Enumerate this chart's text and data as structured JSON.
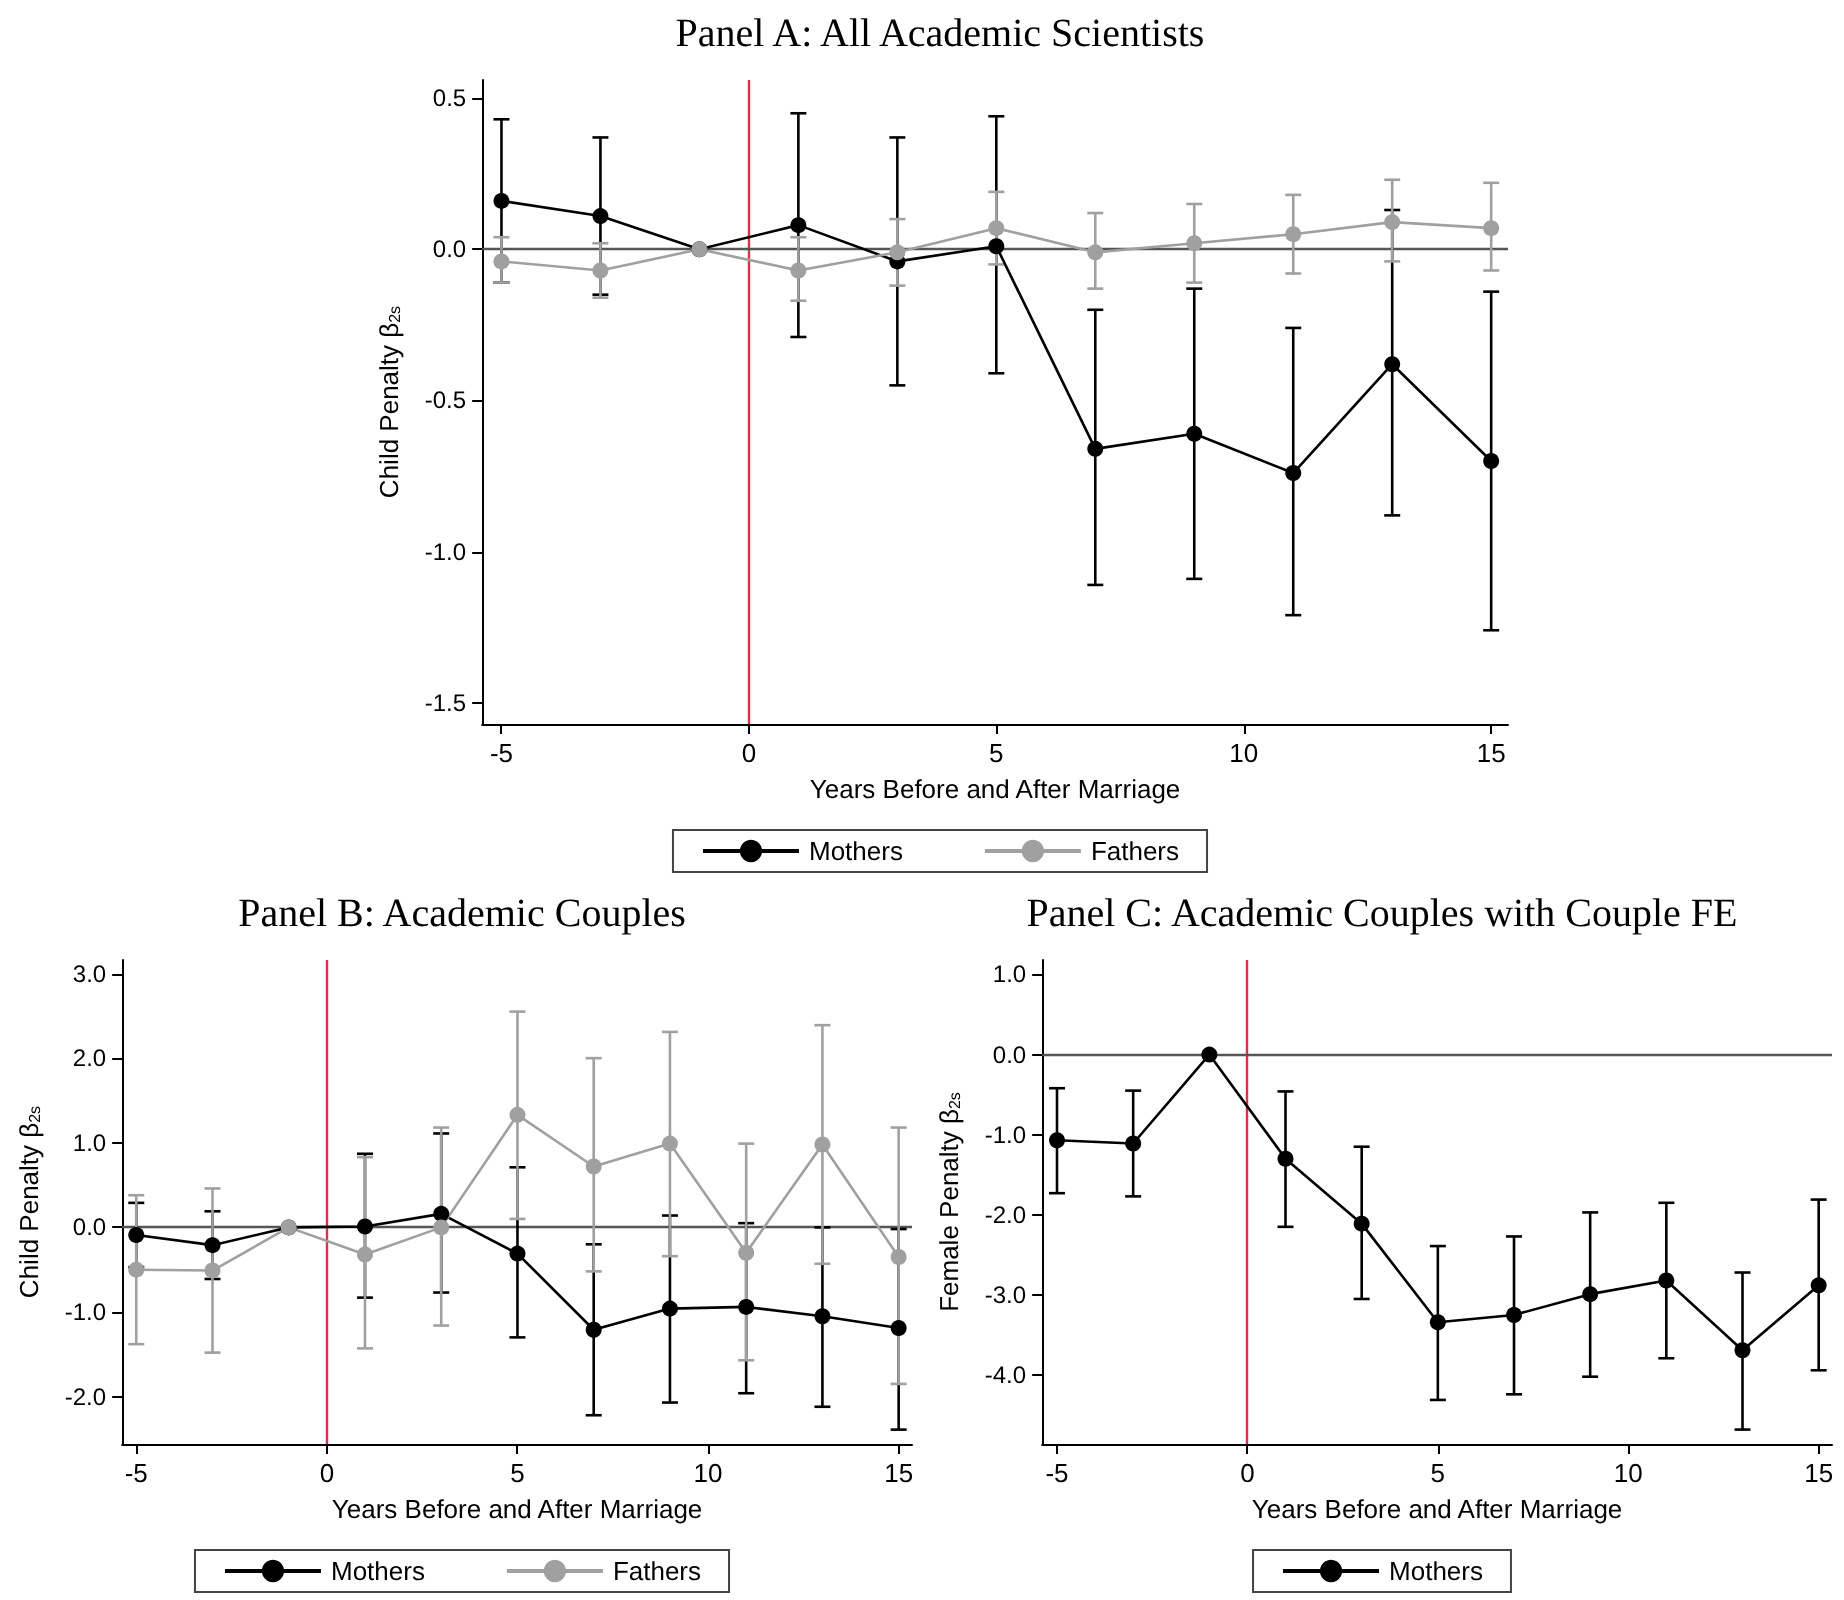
{
  "chart_data": [
    {
      "type": "line",
      "title": "Panel A: All Academic Scientists",
      "xlabel": "Years Before and After Marriage",
      "ylabel": "Child Penalty β$_{2s}$",
      "x": [
        -5,
        -3,
        -1,
        1,
        3,
        5,
        7,
        9,
        11,
        13,
        15
      ],
      "marker": "circle",
      "legend": "bottom",
      "xlim": [
        -5.39,
        15.34
      ],
      "xticks": [
        -5,
        0,
        5,
        10,
        15
      ],
      "ylim": [
        -1.57,
        0.56
      ],
      "yticks": [
        -1.5,
        {
          "value": -1,
          "label": "-1.0"
        },
        -0.5,
        {
          "value": 0,
          "label": "0.0"
        },
        0.5
      ],
      "ref_lines": [
        {
          "axis": "x",
          "value": 0,
          "color": "#d6334c"
        },
        {
          "axis": "y",
          "value": 0,
          "color": "#555555"
        }
      ],
      "series": [
        {
          "name": "Mothers",
          "color": "#000000",
          "values": [
            0.16,
            0.11,
            0,
            0.08,
            -0.04,
            0.01,
            -0.66,
            -0.61,
            -0.74,
            -0.38,
            -0.7
          ],
          "errors": [
            [
              -0.11,
              0.43
            ],
            [
              -0.15,
              0.37
            ],
            null,
            [
              -0.29,
              0.45
            ],
            [
              -0.45,
              0.37
            ],
            [
              -0.41,
              0.44
            ],
            [
              -1.11,
              -0.2
            ],
            [
              -1.09,
              -0.13
            ],
            [
              -1.21,
              -0.26
            ],
            [
              -0.88,
              0.13
            ],
            [
              -1.26,
              -0.14
            ]
          ]
        },
        {
          "name": "Fathers",
          "color": "#a0a0a0",
          "values": [
            -0.04,
            -0.07,
            0,
            -0.07,
            -0.01,
            0.07,
            -0.01,
            0.02,
            0.05,
            0.09,
            0.07
          ],
          "errors": [
            [
              -0.11,
              0.04
            ],
            [
              -0.16,
              0.02
            ],
            null,
            [
              -0.17,
              0.04
            ],
            [
              -0.12,
              0.1
            ],
            [
              -0.05,
              0.19
            ],
            [
              -0.13,
              0.12
            ],
            [
              -0.11,
              0.15
            ],
            [
              -0.08,
              0.18
            ],
            [
              -0.04,
              0.23
            ],
            [
              -0.07,
              0.22
            ]
          ]
        }
      ]
    },
    {
      "type": "line",
      "title": "Panel B: Academic Couples",
      "xlabel": "Years Before and After Marriage",
      "ylabel": "Child Penalty β$_{2s}$",
      "x": [
        -5,
        -3,
        -1,
        1,
        3,
        5,
        7,
        9,
        11,
        13,
        15
      ],
      "marker": "circle",
      "legend": "bottom",
      "xlim": [
        -5.37,
        15.35
      ],
      "xticks": [
        -5,
        0,
        5,
        10,
        15
      ],
      "ylim": [
        -2.56,
        3.16
      ],
      "yticks": [
        {
          "value": -2,
          "label": "-2.0"
        },
        {
          "value": -1,
          "label": "-1.0"
        },
        {
          "value": 0,
          "label": "0.0"
        },
        {
          "value": 1,
          "label": "1.0"
        },
        {
          "value": 2,
          "label": "2.0"
        },
        {
          "value": 3,
          "label": "3.0"
        }
      ],
      "ref_lines": [
        {
          "axis": "x",
          "value": 0,
          "color": "#d6334c"
        },
        {
          "axis": "y",
          "value": 0,
          "color": "#555555"
        }
      ],
      "series": [
        {
          "name": "Mothers",
          "color": "#000000",
          "values": [
            -0.09,
            -0.21,
            0,
            0.01,
            0.16,
            -0.31,
            -1.21,
            -0.96,
            -0.94,
            -1.05,
            -1.19
          ],
          "errors": [
            [
              -0.47,
              0.29
            ],
            [
              -0.61,
              0.19
            ],
            null,
            [
              -0.83,
              0.87
            ],
            [
              -0.77,
              1.11
            ],
            [
              -1.3,
              0.71
            ],
            [
              -2.22,
              -0.2
            ],
            [
              -2.07,
              0.14
            ],
            [
              -1.96,
              0.05
            ],
            [
              -2.12,
              0.0
            ],
            [
              -2.39,
              -0.02
            ]
          ]
        },
        {
          "name": "Fathers",
          "color": "#a0a0a0",
          "values": [
            -0.5,
            -0.51,
            0,
            -0.32,
            0.0,
            1.33,
            0.72,
            0.99,
            -0.3,
            0.98,
            -0.35
          ],
          "errors": [
            [
              -1.38,
              0.38
            ],
            [
              -1.48,
              0.46
            ],
            null,
            [
              -1.43,
              0.83
            ],
            [
              -1.16,
              1.18
            ],
            [
              0.1,
              2.55
            ],
            [
              -0.52,
              2.0
            ],
            [
              -0.34,
              2.31
            ],
            [
              -1.57,
              0.99
            ],
            [
              -0.43,
              2.39
            ],
            [
              -1.85,
              1.18
            ]
          ]
        }
      ]
    },
    {
      "type": "line",
      "title": "Panel C: Academic Couples with Couple FE",
      "xlabel": "Years Before and After Marriage",
      "ylabel": "Female Penalty β$_{2s}$",
      "x": [
        -5,
        -3,
        -1,
        1,
        3,
        5,
        7,
        9,
        11,
        13,
        15
      ],
      "marker": "circle",
      "legend": "bottom",
      "xlim": [
        -5.39,
        15.35
      ],
      "xticks": [
        -5,
        0,
        5,
        10,
        15
      ],
      "ylim": [
        -4.86,
        1.18
      ],
      "yticks": [
        {
          "value": -4,
          "label": "-4.0"
        },
        {
          "value": -3,
          "label": "-3.0"
        },
        {
          "value": -2,
          "label": "-2.0"
        },
        {
          "value": -1,
          "label": "-1.0"
        },
        {
          "value": 0,
          "label": "0.0"
        },
        {
          "value": 1,
          "label": "1.0"
        }
      ],
      "ref_lines": [
        {
          "axis": "x",
          "value": 0,
          "color": "#d6334c"
        },
        {
          "axis": "y",
          "value": 0,
          "color": "#555555"
        }
      ],
      "series": [
        {
          "name": "Mothers",
          "color": "#000000",
          "values": [
            -1.07,
            -1.11,
            0,
            -1.3,
            -2.11,
            -3.34,
            -3.25,
            -2.99,
            -2.82,
            -3.69,
            -2.88
          ],
          "errors": [
            [
              -1.73,
              -0.42
            ],
            [
              -1.77,
              -0.45
            ],
            null,
            [
              -2.15,
              -0.46
            ],
            [
              -3.05,
              -1.15
            ],
            [
              -4.31,
              -2.39
            ],
            [
              -4.24,
              -2.27
            ],
            [
              -4.02,
              -1.97
            ],
            [
              -3.79,
              -1.85
            ],
            [
              -4.68,
              -2.72
            ],
            [
              -3.94,
              -1.81
            ]
          ]
        }
      ]
    }
  ]
}
